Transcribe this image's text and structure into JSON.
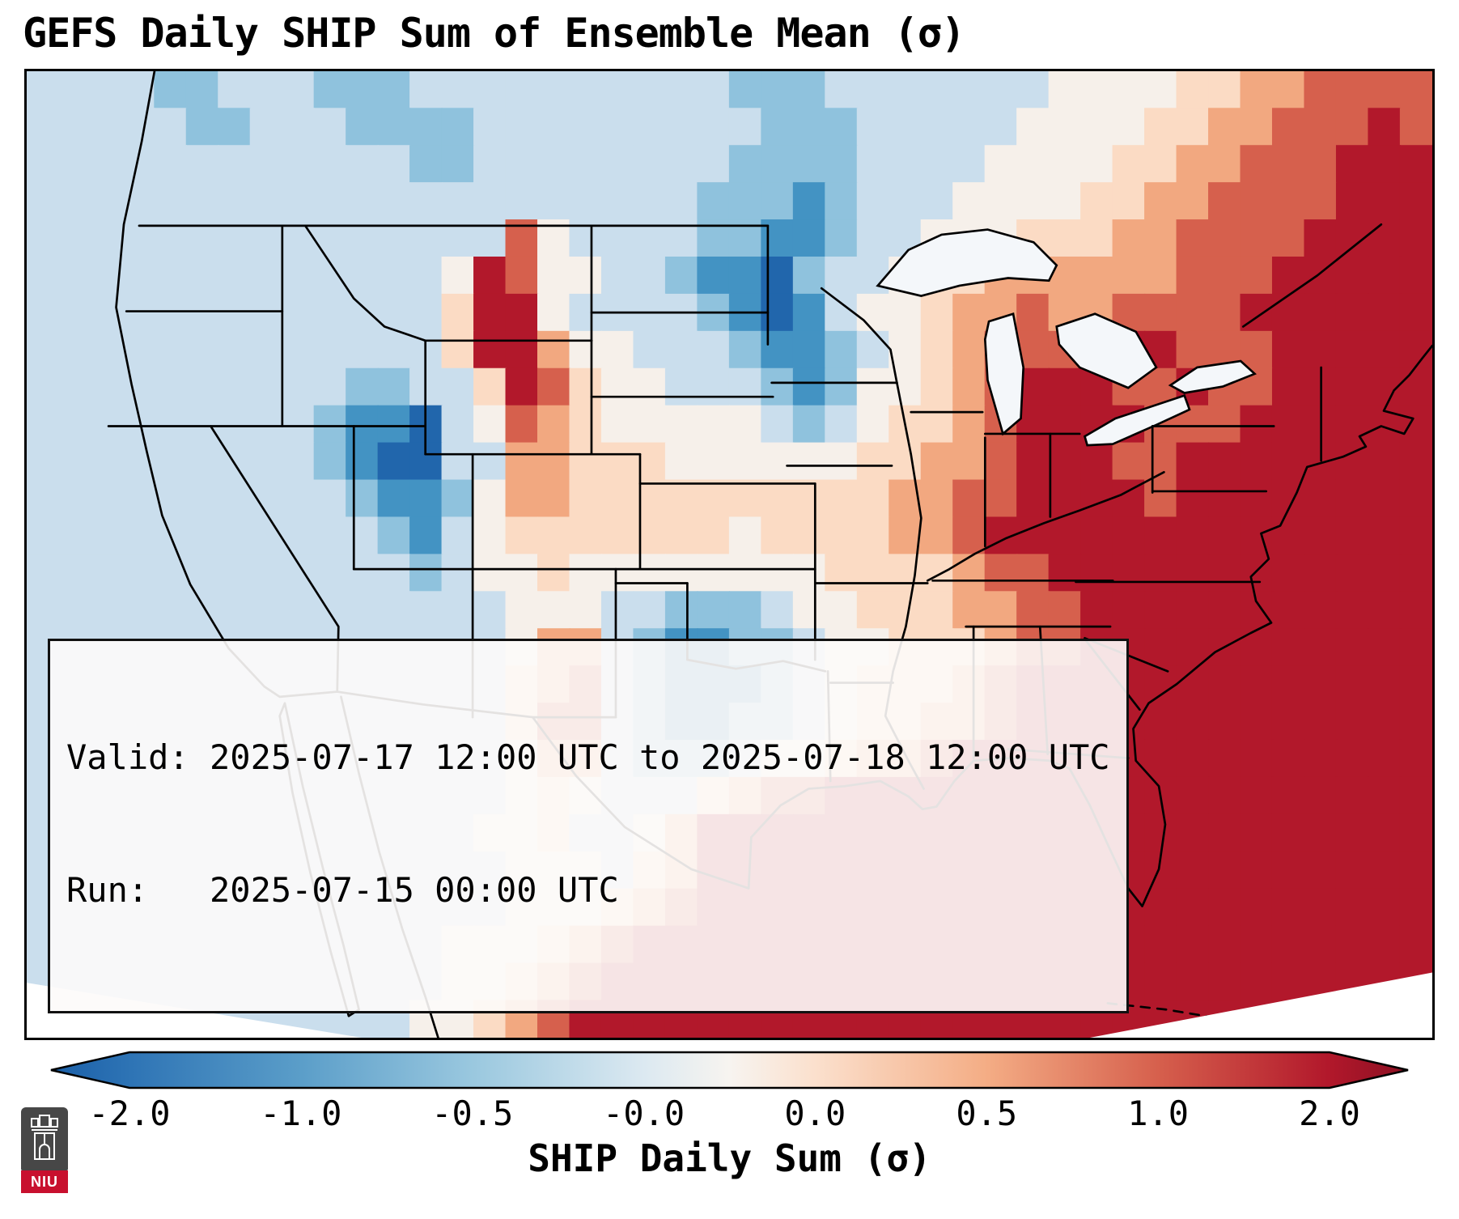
{
  "title": "GEFS Daily SHIP Sum of Ensemble Mean (σ)",
  "info_box": {
    "valid_line": "Valid: 2025-07-17 12:00 UTC to 2025-07-18 12:00 UTC",
    "run_line": "Run:   2025-07-15 00:00 UTC"
  },
  "colorbar": {
    "label": "SHIP Daily Sum (σ)",
    "ticks": [
      "-2.0",
      "-1.0",
      "-0.5",
      "-0.0",
      "0.0",
      "0.5",
      "1.0",
      "2.0"
    ],
    "gradient": [
      {
        "p": 0.0,
        "c": "#1a5fa8"
      },
      {
        "p": 0.059,
        "c": "#2e74b5"
      },
      {
        "p": 0.185,
        "c": "#5b9ec9"
      },
      {
        "p": 0.311,
        "c": "#9ac8df"
      },
      {
        "p": 0.437,
        "c": "#dce9f1"
      },
      {
        "p": 0.5,
        "c": "#f7f4f0"
      },
      {
        "p": 0.563,
        "c": "#fbe0cd"
      },
      {
        "p": 0.689,
        "c": "#f4ad85"
      },
      {
        "p": 0.815,
        "c": "#d6604d"
      },
      {
        "p": 0.941,
        "c": "#b2182b"
      },
      {
        "p": 1.0,
        "c": "#8c1023"
      }
    ]
  },
  "logo": {
    "text": "NIU"
  },
  "chart_data": {
    "type": "heatmap",
    "title": "GEFS Daily SHIP Sum of Ensemble Mean (σ)",
    "colorbar_label": "SHIP Daily Sum (σ)",
    "colorbar_ticks": [
      -2.0,
      -1.0,
      -0.5,
      -0.0,
      0.0,
      0.5,
      1.0,
      2.0
    ],
    "valid": "2025-07-17 12:00 UTC to 2025-07-18 12:00 UTC",
    "run": "2025-07-15 00:00 UTC",
    "grid_cols": 44,
    "legend_values": {
      "0": -1.75,
      "1": -1.0,
      "2": -0.5,
      "3": -0.25,
      "4": 0.0,
      "5": 0.25,
      "6": 0.5,
      "7": 1.0,
      "8": 1.75,
      "9": 2.0
    },
    "palette": {
      "0": "#2166ac",
      "1": "#4393c3",
      "2": "#8fc2dd",
      "3": "#cadeed",
      "4": "#f6f0ea",
      "5": "#fbdbc4",
      "6": "#f2a880",
      "7": "#d6604d",
      "8": "#b2182b",
      "9": "#7f0f22"
    },
    "grid_rows": [
      "33332233322233333333332223333333444455667777",
      "33333223332222333333333222333334444556677787",
      "33333333333322333333332222333344445566777888",
      "33333333333333333333322212333444455667777888",
      "33333333333333374333322112334445556677778888",
      "33333333333334874433211023345566666677788888",
      "33333333333335884333321013445667667777888888",
      "33333333333335886443332112345677778877788888",
      "33333333332233587544333212445678887787788888",
      "33333333321103476544444323455678888777888888",
      "33333333321003366555444444556678887788888888",
      "33333333332112466555555555566778888788888888",
      "33333333333213455555554555566788888888888888",
      "33333333333323445444444445555677888888888888",
      "33333333333333344433222344555667788888888888",
      "33333333333333346632112234455567788888888888",
      "33333333333333356732111234555678888888888888",
      "33333333333333357732112234556678888888888888",
      "33333333333333346632223445667888888888888888",
      "33333333333333345433356778888888888888888888",
      "33333333333333445334688888888888888888888888",
      "33333333333333344435688888888888888888888888",
      "33333333333333344456788888888888888888888888",
      "33333333333334445678888888888888888888888888",
      "33333333333334456788888888888888888888888888",
      "33333333333344567888888888888888888888888888"
    ]
  }
}
